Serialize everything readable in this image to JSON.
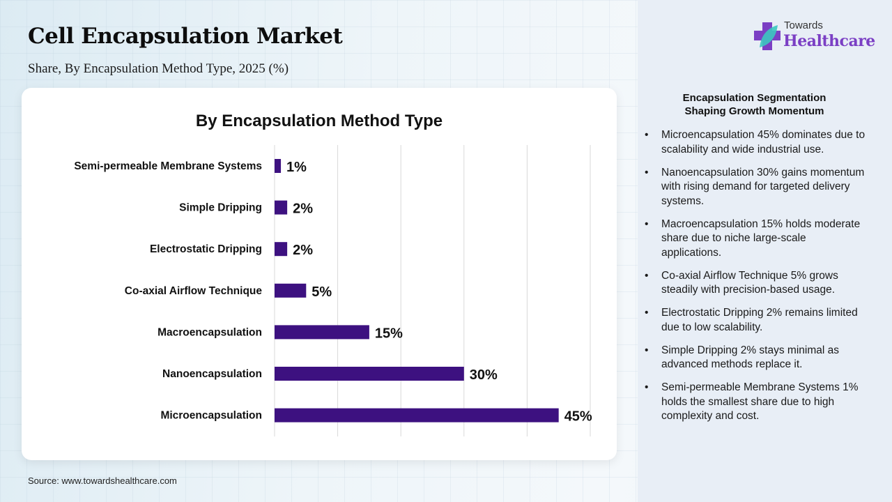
{
  "header": {
    "title": "Cell Encapsulation Market",
    "subtitle": "Share, By Encapsulation Method Type, 2025 (%)"
  },
  "logo": {
    "line1": "Towards",
    "line2": "Healthcare",
    "cross_color": "#7b3fc4",
    "leaf_color": "#3cc7c0"
  },
  "chart_data": {
    "type": "bar",
    "orientation": "horizontal",
    "title": "By Encapsulation Method Type",
    "categories": [
      "Semi-permeable Membrane Systems",
      "Simple Dripping",
      "Electrostatic Dripping",
      "Co-axial Airflow Technique",
      "Macroencapsulation",
      "Nanoencapsulation",
      "Microencapsulation"
    ],
    "values": [
      1,
      2,
      2,
      5,
      15,
      30,
      45
    ],
    "data_labels": [
      "1%",
      "2%",
      "2%",
      "5%",
      "15%",
      "30%",
      "45%"
    ],
    "xlim": [
      0,
      50
    ],
    "grid": true,
    "bar_color": "#3d1180",
    "xlabel": "",
    "ylabel": ""
  },
  "sidebar": {
    "title_line1": "Encapsulation Segmentation",
    "title_line2": "Shaping Growth Momentum",
    "bullet_char": "•",
    "bullets": [
      "Microencapsulation 45% dominates due to scalability and wide industrial use.",
      "Nanoencapsulation 30% gains momentum with rising demand for targeted delivery systems.",
      "Macroencapsulation 15% holds moderate share due to niche large-scale applications.",
      "Co-axial Airflow Technique 5% grows steadily with precision-based usage.",
      "Electrostatic Dripping 2% remains limited due to low scalability.",
      "Simple Dripping 2% stays minimal as advanced methods replace it.",
      "Semi-permeable Membrane Systems 1% holds the smallest share due to high complexity and cost."
    ]
  },
  "footer": {
    "source": "Source: www.towardshealthcare.com"
  }
}
